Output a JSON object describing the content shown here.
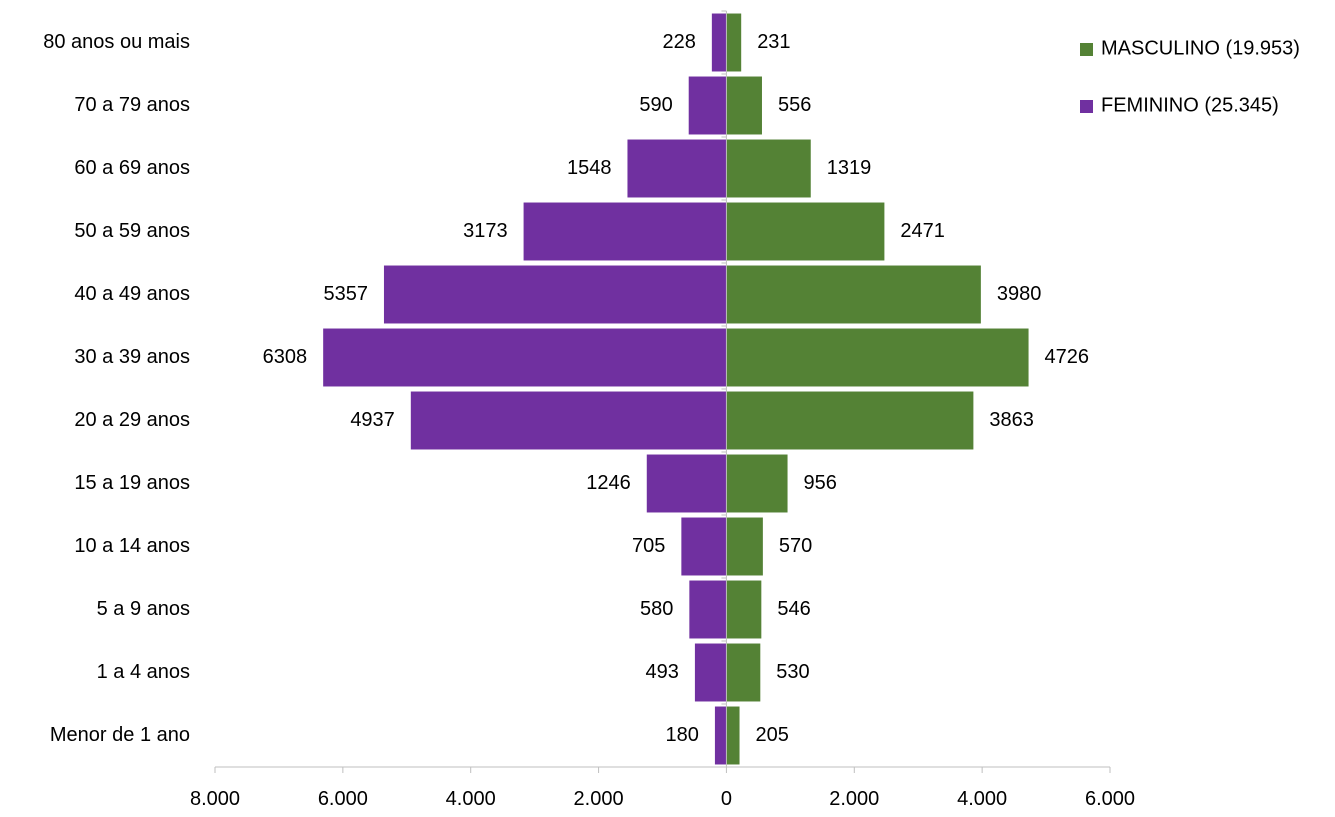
{
  "chart_data": {
    "type": "bar",
    "orientation": "horizontal",
    "layout": "population-pyramid",
    "categories": [
      "80 anos ou mais",
      "70 a 79 anos",
      "60 a 69 anos",
      "50 a 59 anos",
      "40 a 49 anos",
      "30 a 39 anos",
      "20 a 29 anos",
      "15 a 19 anos",
      "10 a 14 anos",
      "5 a 9 anos",
      "1 a 4 anos",
      "Menor de 1 ano"
    ],
    "series": [
      {
        "name": "FEMININO (25.345)",
        "side": "left",
        "color": "#7030a0",
        "values": [
          228,
          590,
          1548,
          3173,
          5357,
          6308,
          4937,
          1246,
          705,
          580,
          493,
          180
        ]
      },
      {
        "name": "MASCULINO (19.953)",
        "side": "right",
        "color": "#548235",
        "values": [
          231,
          556,
          1319,
          2471,
          3980,
          4726,
          3863,
          956,
          570,
          546,
          530,
          205
        ]
      }
    ],
    "xlim": [
      -8000,
      6000
    ],
    "xticks": [
      -8000,
      -6000,
      -4000,
      -2000,
      0,
      2000,
      4000,
      6000
    ],
    "xtick_labels": [
      "8.000",
      "6.000",
      "4.000",
      "2.000",
      "0",
      "2.000",
      "4.000",
      "6.000"
    ],
    "legend": {
      "placement": "top-right",
      "entries": [
        "MASCULINO (19.953)",
        "FEMININO (25.345)"
      ],
      "colors": [
        "#548235",
        "#7030a0"
      ]
    },
    "grid": false,
    "title": "",
    "xlabel": "",
    "ylabel": ""
  }
}
